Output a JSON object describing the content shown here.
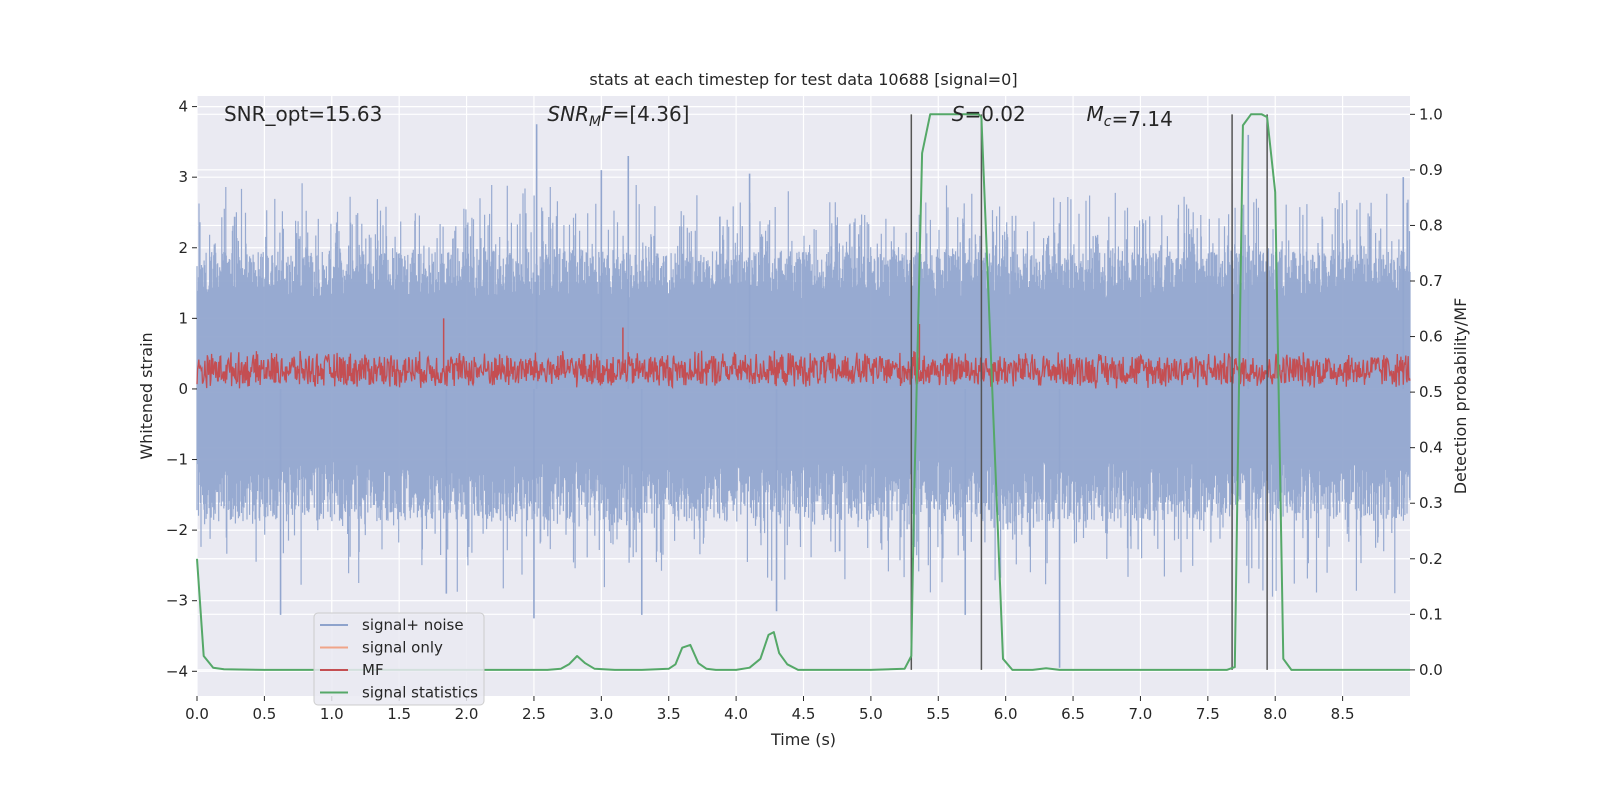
{
  "chart_data": {
    "type": "line",
    "title": "stats at each timestep for test data 10688 [signal=0]",
    "xlabel": "Time (s)",
    "ylabel": "Whitened strain",
    "ylabel_right": "Detection probability/MF",
    "xlim": [
      0,
      9.0
    ],
    "ylim": [
      -4.35,
      4.15
    ],
    "ylim_right": [
      -0.047,
      1.033
    ],
    "x_ticks": [
      0.0,
      0.5,
      1.0,
      1.5,
      2.0,
      2.5,
      3.0,
      3.5,
      4.0,
      4.5,
      5.0,
      5.5,
      6.0,
      6.5,
      7.0,
      7.5,
      8.0,
      8.5
    ],
    "x_tick_labels": [
      "0.0",
      "0.5",
      "1.0",
      "1.5",
      "2.0",
      "2.5",
      "3.0",
      "3.5",
      "4.0",
      "4.5",
      "5.0",
      "5.5",
      "6.0",
      "6.5",
      "7.0",
      "7.5",
      "8.0",
      "8.5"
    ],
    "y_ticks": [
      -4,
      -3,
      -2,
      -1,
      0,
      1,
      2,
      3,
      4
    ],
    "y_tick_labels": [
      "−4",
      "−3",
      "−2",
      "−1",
      "0",
      "1",
      "2",
      "3",
      "4"
    ],
    "y_ticks_right": [
      0.0,
      0.1,
      0.2,
      0.3,
      0.4,
      0.5,
      0.6,
      0.7,
      0.8,
      0.9,
      1.0
    ],
    "y_tick_labels_right": [
      "0.0",
      "0.1",
      "0.2",
      "0.3",
      "0.4",
      "0.5",
      "0.6",
      "0.7",
      "0.8",
      "0.9",
      "1.0"
    ],
    "grid": true,
    "legend": {
      "position": "lower-left",
      "entries": [
        {
          "label": "signal+ noise",
          "color": "#8ea3cc"
        },
        {
          "label": "signal only",
          "color": "#f0a488"
        },
        {
          "label": "MF",
          "color": "#c44e52"
        },
        {
          "label": "signal statistics",
          "color": "#55a868"
        }
      ]
    },
    "annotations": [
      {
        "text": "SNR_opt=15.63",
        "x": 0.2
      },
      {
        "text": "=[4.36]",
        "math": "SNR",
        "sub": "M",
        "suffix": "F",
        "x": 2.6
      },
      {
        "text": "=0.02",
        "math": "S",
        "x": 5.6
      },
      {
        "text": "=7.14",
        "math": "M",
        "sub": "c",
        "x": 6.6
      }
    ],
    "noise": {
      "name": "signal+ noise",
      "color": "#92a6cf",
      "core_range": [
        -1.7,
        1.95
      ],
      "peak_spikes": [
        {
          "x": 2.52,
          "y": 3.75
        },
        {
          "x": 2.5,
          "y": -3.25
        },
        {
          "x": 1.85,
          "y": -2.9
        },
        {
          "x": 3.0,
          "y": 3.1
        },
        {
          "x": 3.2,
          "y": 3.3
        },
        {
          "x": 3.3,
          "y": -3.2
        },
        {
          "x": 4.1,
          "y": 3.05
        },
        {
          "x": 4.3,
          "y": -3.15
        },
        {
          "x": 6.4,
          "y": -3.95
        },
        {
          "x": 7.8,
          "y": 3.6
        },
        {
          "x": 0.62,
          "y": -3.2
        },
        {
          "x": 5.7,
          "y": -3.2
        },
        {
          "x": 8.95,
          "y": 3.0
        }
      ]
    },
    "mf": {
      "name": "MF",
      "color": "#c44e52",
      "center": 0.27,
      "range": [
        0.05,
        0.6
      ],
      "peak_spikes": [
        {
          "x": 1.83,
          "y": 1.0
        },
        {
          "x": 3.16,
          "y": 0.87
        },
        {
          "x": 5.36,
          "y": 0.92
        }
      ]
    },
    "statistics": {
      "name": "signal statistics",
      "color": "#55a868",
      "x": [
        0.0,
        0.05,
        0.12,
        0.2,
        0.5,
        1.0,
        1.5,
        2.0,
        2.5,
        2.6,
        2.7,
        2.76,
        2.82,
        2.88,
        2.95,
        3.1,
        3.3,
        3.5,
        3.55,
        3.6,
        3.66,
        3.72,
        3.78,
        3.85,
        4.0,
        4.1,
        4.18,
        4.24,
        4.28,
        4.32,
        4.38,
        4.46,
        4.6,
        5.0,
        5.25,
        5.3,
        5.32,
        5.38,
        5.44,
        5.6,
        5.8,
        5.82,
        5.98,
        6.05,
        6.2,
        6.3,
        6.4,
        6.6,
        7.0,
        7.5,
        7.64,
        7.7,
        7.76,
        7.82,
        7.9,
        7.94,
        8.0,
        8.06,
        8.12,
        8.3,
        8.5,
        9.0
      ],
      "y": [
        0.2,
        0.025,
        0.004,
        0.001,
        0.0,
        0.0,
        0.0,
        0.0,
        0.0,
        0.0,
        0.002,
        0.01,
        0.025,
        0.012,
        0.002,
        0.0,
        0.0,
        0.002,
        0.01,
        0.04,
        0.045,
        0.012,
        0.002,
        0.0,
        0.0,
        0.004,
        0.02,
        0.063,
        0.068,
        0.03,
        0.01,
        0.0,
        0.0,
        0.0,
        0.002,
        0.025,
        0.3,
        0.93,
        1.0,
        1.0,
        1.0,
        0.995,
        0.02,
        0.0,
        0.0,
        0.003,
        0.0,
        0.0,
        0.0,
        0.0,
        0.0,
        0.005,
        0.98,
        1.0,
        1.0,
        0.995,
        0.86,
        0.02,
        0.0,
        0.0,
        0.0,
        0.0
      ]
    },
    "vertical_lines": [
      5.3,
      5.82,
      7.68,
      7.94
    ],
    "vertical_line_range": [
      0.0,
      1.0
    ],
    "vertical_line_color": "#555555",
    "background_color": "#eaeaf2",
    "grid_color": "#ffffff"
  }
}
